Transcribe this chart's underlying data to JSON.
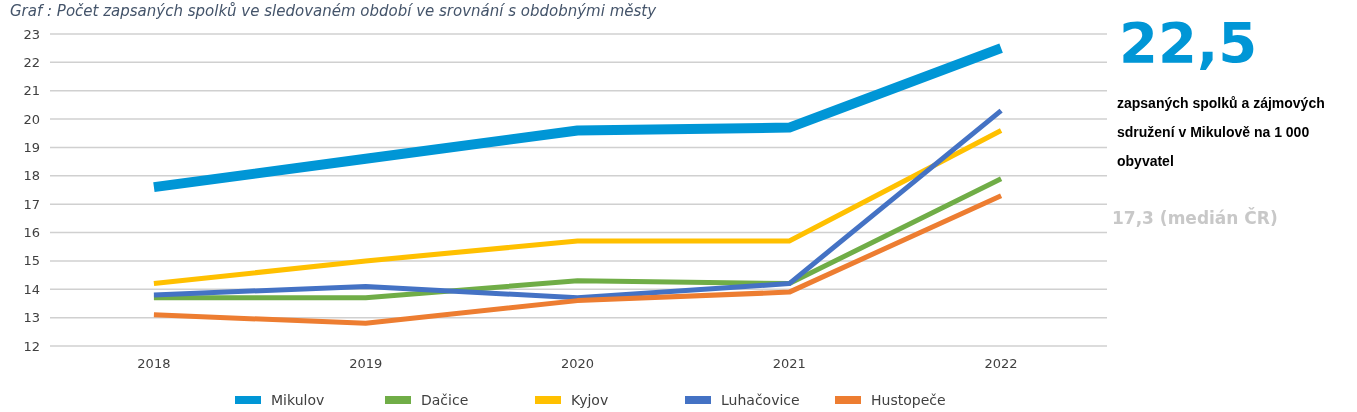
{
  "chart_data": {
    "type": "line",
    "title": "Graf : Počet zapsaných spolků ve sledovaném období ve srovnání s obdobnými městy",
    "categories": [
      "2018",
      "2019",
      "2020",
      "2021",
      "2022"
    ],
    "series": [
      {
        "name": "Mikulov",
        "color": "#0096d6",
        "values": [
          17.6,
          18.6,
          19.6,
          19.7,
          22.5
        ]
      },
      {
        "name": "Dačice",
        "color": "#70ad47",
        "values": [
          13.7,
          13.7,
          14.3,
          14.2,
          17.9
        ]
      },
      {
        "name": "Kyjov",
        "color": "#ffc000",
        "values": [
          14.2,
          15.0,
          15.7,
          15.7,
          19.6
        ]
      },
      {
        "name": "Luhačovice",
        "color": "#4472c4",
        "values": [
          13.8,
          14.1,
          13.7,
          14.2,
          20.3
        ]
      },
      {
        "name": "Hustopeče",
        "color": "#ed7d31",
        "values": [
          13.1,
          12.8,
          13.6,
          13.9,
          17.3
        ]
      }
    ],
    "ylim": [
      12,
      23
    ],
    "yticks": [
      12,
      13,
      14,
      15,
      16,
      17,
      18,
      19,
      20,
      21,
      22,
      23
    ],
    "grid": "y",
    "legend": "bottom",
    "marker": "none",
    "line_style": "solid",
    "annotations": [
      "22,5",
      "zapsaných spolků a zájmových sdružení v Mikulově na 1 000 obyvatel",
      "17,3 (medián ČR)"
    ]
  }
}
